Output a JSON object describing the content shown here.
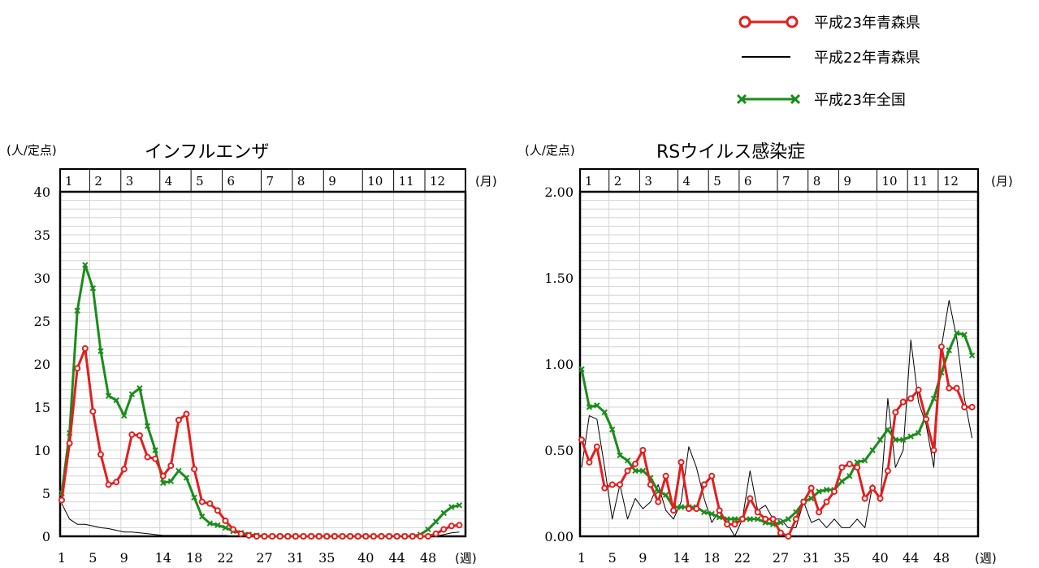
{
  "legend": [
    {
      "label": "平成23年青森県",
      "color": "#e31e1e",
      "marker": "circle"
    },
    {
      "label": "平成22年青森県",
      "color": "#000000",
      "marker": "none"
    },
    {
      "label": "平成23年全国",
      "color": "#1a8c1a",
      "marker": "x"
    }
  ],
  "chart_data": [
    {
      "type": "line",
      "title": "インフルエンザ",
      "ylabel": "(人/定点)",
      "month_unit": "(月)",
      "week_unit": "(週)",
      "months": [
        "1",
        "2",
        "3",
        "4",
        "5",
        "6",
        "7",
        "8",
        "9",
        "10",
        "11",
        "12"
      ],
      "month_start_weeks": [
        1,
        5,
        9,
        14,
        18,
        22,
        27,
        31,
        35,
        40,
        44,
        48
      ],
      "x_ticks": [
        1,
        5,
        9,
        14,
        18,
        22,
        27,
        31,
        35,
        40,
        44,
        48
      ],
      "ylim": [
        0,
        40
      ],
      "y_ticks": [
        0,
        5,
        10,
        15,
        20,
        25,
        30,
        35,
        40
      ],
      "y_tick_labels": [
        "0",
        "5",
        "10",
        "15",
        "20",
        "25",
        "30",
        "35",
        "40"
      ],
      "grid": true,
      "series": [
        {
          "name": "平成23年青森県",
          "color": "#e31e1e",
          "marker": "circle",
          "width": 3,
          "values": [
            4.2,
            10.8,
            19.5,
            21.8,
            14.5,
            9.5,
            6,
            6.3,
            7.8,
            11.8,
            11.7,
            9.2,
            9,
            7,
            8.2,
            13.5,
            14.2,
            7.8,
            4,
            3.8,
            3,
            1.8,
            0.8,
            0.3,
            0.1,
            0,
            0,
            0,
            0,
            0,
            0,
            0,
            0,
            0,
            0,
            0,
            0,
            0,
            0,
            0,
            0,
            0,
            0,
            0,
            0,
            0,
            0,
            0,
            0.3,
            0.8,
            1.2,
            1.3
          ]
        },
        {
          "name": "平成22年青森県",
          "color": "#000000",
          "marker": "none",
          "width": 1,
          "values": [
            3.8,
            2,
            1.4,
            1.4,
            1.2,
            1,
            0.9,
            0.7,
            0.5,
            0.5,
            0.4,
            0.3,
            0.2,
            0.1,
            0.1,
            0.1,
            0.1,
            0.1,
            0.1,
            0.1,
            0.1,
            0.1,
            0,
            0,
            0,
            0,
            0,
            0,
            0,
            0,
            0,
            0,
            0,
            0,
            0,
            0,
            0,
            0,
            0,
            0,
            0,
            0,
            0,
            0,
            0,
            0,
            0,
            0,
            0,
            0.2,
            0.4,
            0.5
          ]
        },
        {
          "name": "平成23年全国",
          "color": "#1a8c1a",
          "marker": "x",
          "width": 3,
          "values": [
            5,
            12,
            26.2,
            31.5,
            28.8,
            21.5,
            16.3,
            15.8,
            14,
            16.5,
            17.2,
            12.8,
            10,
            6.2,
            6.4,
            7.6,
            6.8,
            4.5,
            2.3,
            1.5,
            1.3,
            1,
            0.6,
            0.4,
            0.2,
            0.1,
            0,
            0,
            0,
            0,
            0,
            0,
            0,
            0,
            0,
            0,
            0,
            0,
            0,
            0,
            0,
            0,
            0,
            0,
            0,
            0,
            0.2,
            0.8,
            1.7,
            2.7,
            3.4,
            3.6
          ]
        }
      ]
    },
    {
      "type": "line",
      "title": "RSウイルス感染症",
      "ylabel": "(人/定点)",
      "month_unit": "(月)",
      "week_unit": "(週)",
      "months": [
        "1",
        "2",
        "3",
        "4",
        "5",
        "6",
        "7",
        "8",
        "9",
        "10",
        "11",
        "12"
      ],
      "month_start_weeks": [
        1,
        5,
        9,
        14,
        18,
        22,
        27,
        31,
        35,
        40,
        44,
        48
      ],
      "x_ticks": [
        1,
        5,
        9,
        14,
        18,
        22,
        27,
        31,
        35,
        40,
        44,
        48
      ],
      "ylim": [
        0,
        2
      ],
      "y_ticks": [
        0,
        0.5,
        1,
        1.5,
        2
      ],
      "y_tick_labels": [
        "0.00",
        "0.50",
        "1.00",
        "1.50",
        "2.00"
      ],
      "grid": true,
      "series": [
        {
          "name": "平成23年青森県",
          "color": "#e31e1e",
          "marker": "circle",
          "width": 3,
          "values": [
            0.56,
            0.43,
            0.52,
            0.28,
            0.3,
            0.3,
            0.38,
            0.42,
            0.5,
            0.3,
            0.2,
            0.35,
            0.15,
            0.43,
            0.16,
            0.16,
            0.3,
            0.35,
            0.15,
            0.07,
            0.07,
            0.1,
            0.22,
            0.14,
            0.1,
            0.1,
            0.02,
            0,
            0.1,
            0.2,
            0.28,
            0.14,
            0.2,
            0.26,
            0.4,
            0.42,
            0.4,
            0.22,
            0.28,
            0.22,
            0.38,
            0.72,
            0.78,
            0.8,
            0.85,
            0.68,
            0.5,
            1.1,
            0.86,
            0.86,
            0.75,
            0.75
          ]
        },
        {
          "name": "平成22年青森県",
          "color": "#000000",
          "marker": "none",
          "width": 1,
          "values": [
            0.4,
            0.7,
            0.68,
            0.4,
            0.1,
            0.3,
            0.1,
            0.22,
            0.16,
            0.2,
            0.3,
            0.15,
            0.1,
            0.2,
            0.52,
            0.4,
            0.22,
            0.08,
            0.15,
            0.08,
            0,
            0.1,
            0.38,
            0.15,
            0.18,
            0.1,
            0.1,
            0.05,
            0.05,
            0.2,
            0.08,
            0.1,
            0.05,
            0.1,
            0.05,
            0.05,
            0.1,
            0.05,
            0.3,
            0.2,
            0.8,
            0.4,
            0.5,
            1.14,
            0.78,
            0.65,
            0.4,
            1.1,
            1.37,
            1.15,
            0.8,
            0.57
          ]
        },
        {
          "name": "平成23年全国",
          "color": "#1a8c1a",
          "marker": "x",
          "width": 3,
          "values": [
            0.97,
            0.75,
            0.76,
            0.72,
            0.62,
            0.47,
            0.44,
            0.38,
            0.38,
            0.34,
            0.26,
            0.24,
            0.17,
            0.17,
            0.17,
            0.17,
            0.14,
            0.13,
            0.11,
            0.1,
            0.1,
            0.1,
            0.1,
            0.1,
            0.08,
            0.07,
            0.08,
            0.1,
            0.14,
            0.2,
            0.22,
            0.26,
            0.27,
            0.27,
            0.32,
            0.35,
            0.43,
            0.44,
            0.5,
            0.56,
            0.62,
            0.56,
            0.56,
            0.58,
            0.6,
            0.7,
            0.8,
            0.95,
            1.08,
            1.18,
            1.17,
            1.05
          ]
        }
      ]
    }
  ]
}
